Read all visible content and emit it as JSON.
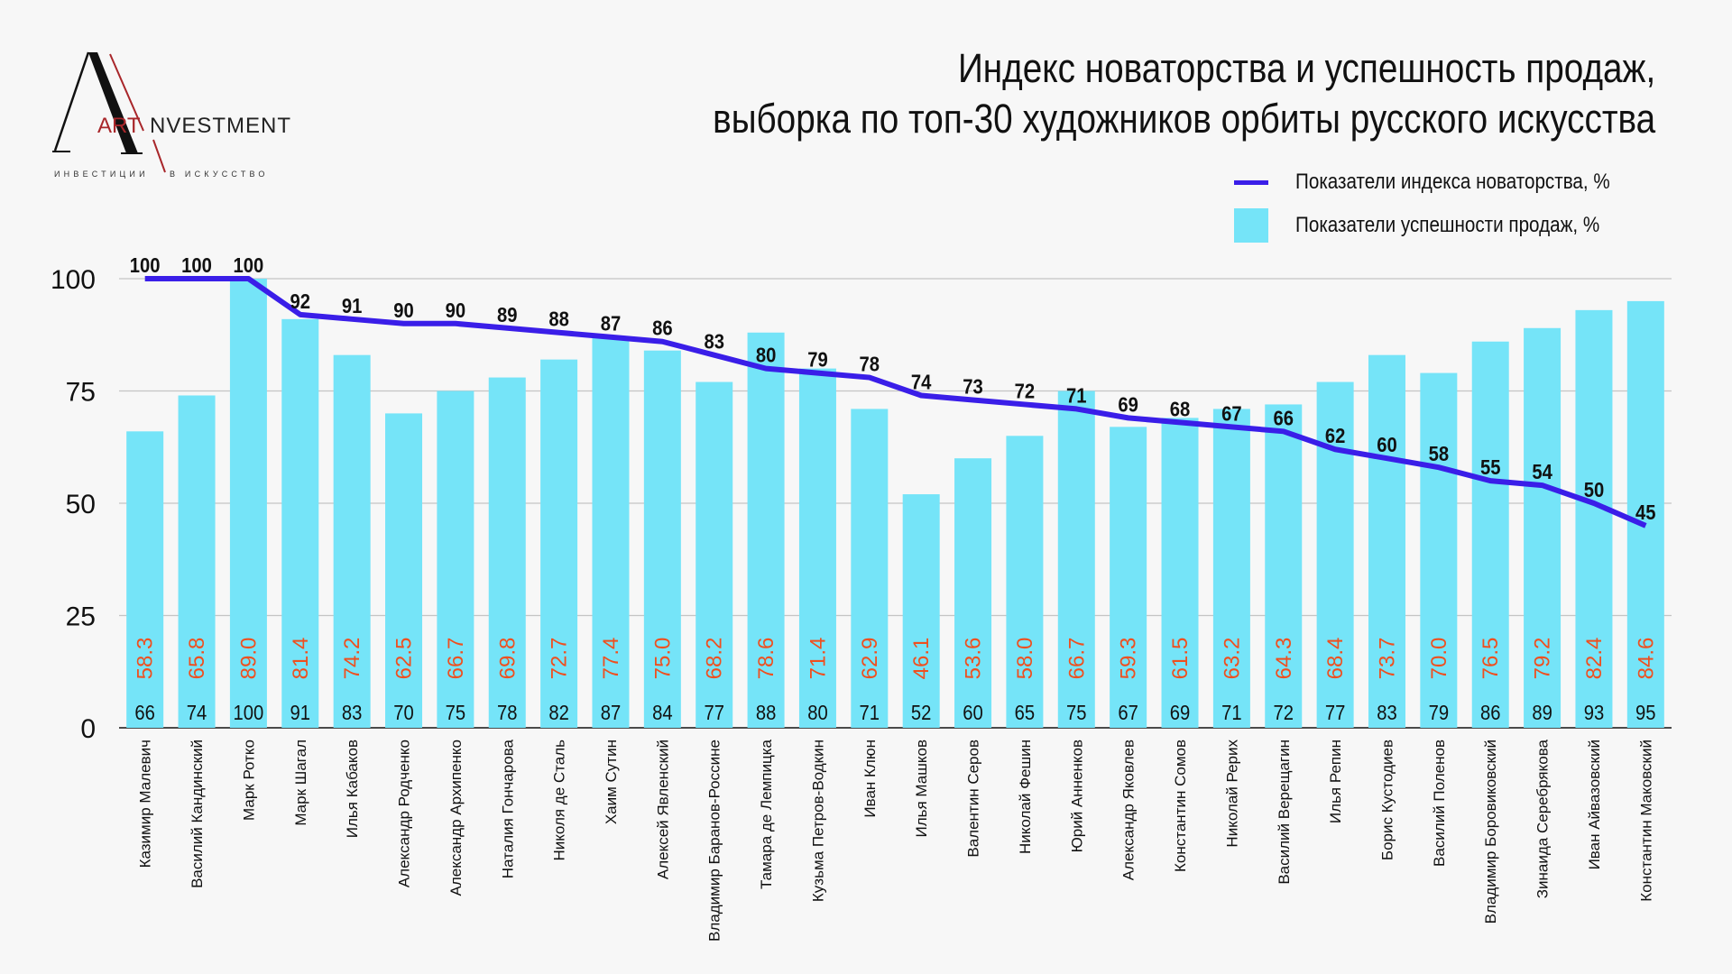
{
  "logo": {
    "brand_left": "ART",
    "brand_right": "NVESTMENT",
    "tagline_left": "ИНВЕСТИЦИИ",
    "tagline_right": "В ИСКУССТВО"
  },
  "title": {
    "line1": "Индекс новаторства и успешность продаж,",
    "line2": "выборка по топ-30 художников орбиты русского искусства"
  },
  "legend": {
    "line_label": "Показатели индекса новаторства, %",
    "bar_label": "Показатели успешности продаж, %"
  },
  "colors": {
    "bar": "#75e4f8",
    "line": "#3a1ee8",
    "secondary_label": "#ef4f1f",
    "grid": "#c4c4c4"
  },
  "chart_data": {
    "type": "bar",
    "title": "Индекс новаторства и успешность продаж, выборка по топ-30 художников орбиты русского искусства",
    "xlabel": "",
    "ylabel": "",
    "ylim": [
      0,
      100
    ],
    "yticks": [
      0,
      25,
      50,
      75,
      100
    ],
    "grid": true,
    "legend_position": "top-right",
    "categories": [
      "Казимир Малевич",
      "Василий Кандинский",
      "Марк Ротко",
      "Марк Шагал",
      "Илья Кабаков",
      "Александр Родченко",
      "Александр Архипенко",
      "Наталия Гончарова",
      "Николя де Сталь",
      "Хаим Сутин",
      "Алексей Явленский",
      "Владимир Баранов-Россине",
      "Тамара де Лемпицка",
      "Кузьма Петров-Водкин",
      "Иван Клюн",
      "Илья Машков",
      "Валентин Серов",
      "Николай Фешин",
      "Юрий Анненков",
      "Александр Яковлев",
      "Константин Сомов",
      "Николай Рерих",
      "Василий Верещагин",
      "Илья Репин",
      "Борис Кустодиев",
      "Василий Поленов",
      "Владимир Боровиковский",
      "Зинаида Серебрякова",
      "Иван Айвазовский",
      "Константин Маковский"
    ],
    "series": [
      {
        "name": "Показатели успешности продаж, %",
        "type": "bar",
        "values": [
          66,
          74,
          100,
          91,
          83,
          70,
          75,
          78,
          82,
          87,
          84,
          77,
          88,
          80,
          71,
          52,
          60,
          65,
          75,
          67,
          69,
          71,
          72,
          77,
          83,
          79,
          86,
          89,
          93,
          95
        ]
      },
      {
        "name": "Показатели индекса новаторства, %",
        "type": "line",
        "values": [
          100,
          100,
          100,
          92,
          91,
          90,
          90,
          89,
          88,
          87,
          86,
          83,
          80,
          79,
          78,
          74,
          73,
          72,
          71,
          69,
          68,
          67,
          66,
          62,
          60,
          58,
          55,
          54,
          50,
          45
        ]
      },
      {
        "name": "secondary value (orange labels)",
        "type": "label",
        "values": [
          "58.3",
          "65.8",
          "89.0",
          "81.4",
          "74.2",
          "62.5",
          "66.7",
          "69.8",
          "72.7",
          "77.4",
          "75.0",
          "68.2",
          "78.6",
          "71.4",
          "62.9",
          "46.1",
          "53.6",
          "58.0",
          "66.7",
          "59.3",
          "61.5",
          "63.2",
          "64.3",
          "68.4",
          "73.7",
          "70.0",
          "76.5",
          "79.2",
          "82.4",
          "84.6"
        ]
      }
    ]
  }
}
